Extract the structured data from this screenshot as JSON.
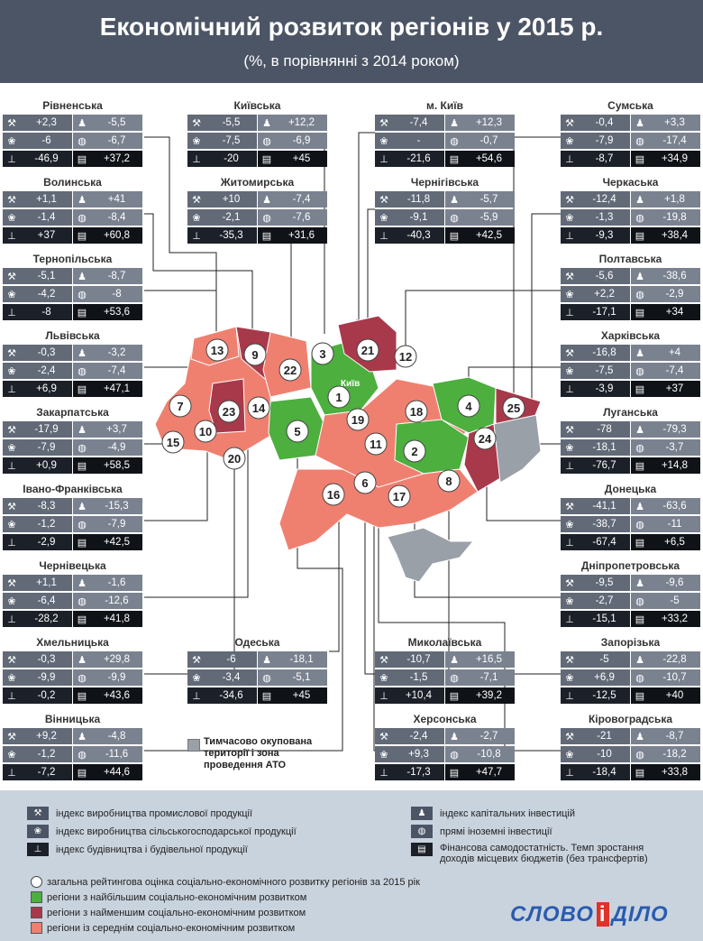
{
  "title": "Економічний розвиток регіонів  у 2015 р.",
  "subtitle": "(%, в порівнянні з 2014 роком)",
  "colors": {
    "header": "#4c5565",
    "best": "#4caf3e",
    "worst": "#a8394a",
    "average": "#ef8070",
    "occupied": "#9aa0a8"
  },
  "icons": {
    "industry": "wrench-icon",
    "agriculture": "wheat-icon",
    "construction": "crane-icon",
    "investment": "people-icon",
    "fdi": "globe-icon",
    "budget": "money-icon"
  },
  "capital_label": "Київ",
  "occupied_label": [
    "Тимчасово окупована",
    "території і зона",
    "проведення АТО"
  ],
  "regions": [
    {
      "id": "rivne",
      "name": "Рівненська",
      "v": [
        "+2,3",
        "-5,5",
        "-6",
        "-6,7",
        "-46,9",
        "+37,2"
      ]
    },
    {
      "id": "kyiv-obl",
      "name": "Київська",
      "v": [
        "-5,5",
        "+12,2",
        "-7,5",
        "-6,9",
        "-20",
        "+45"
      ]
    },
    {
      "id": "kyiv-city",
      "name": "м. Київ",
      "v": [
        "-7,4",
        "+12,3",
        "-",
        "-0,7",
        "-21,6",
        "+54,6"
      ]
    },
    {
      "id": "sumy",
      "name": "Сумська",
      "v": [
        "-0,4",
        "+3,3",
        "-7,9",
        "-17,4",
        "-8,7",
        "+34,9"
      ]
    },
    {
      "id": "volyn",
      "name": "Волинська",
      "v": [
        "+1,1",
        "+41",
        "-1,4",
        "-8,4",
        "+37",
        "+60,8"
      ]
    },
    {
      "id": "zhytomyr",
      "name": "Житомирська",
      "v": [
        "+10",
        "-7,4",
        "-2,1",
        "-7,6",
        "-35,3",
        "+31,6"
      ]
    },
    {
      "id": "chernihiv",
      "name": "Чернігівська",
      "v": [
        "-11,8",
        "-5,7",
        "-9,1",
        "-5,9",
        "-40,3",
        "+42,5"
      ]
    },
    {
      "id": "cherkasy",
      "name": "Черкаська",
      "v": [
        "-12,4",
        "+1,8",
        "-1,3",
        "-19,8",
        "-9,3",
        "+38,4"
      ]
    },
    {
      "id": "ternopil",
      "name": "Тернопільська",
      "v": [
        "-5,1",
        "-8,7",
        "-4,2",
        "-8",
        "-8",
        "+53,6"
      ]
    },
    {
      "id": "poltava",
      "name": "Полтавська",
      "v": [
        "-5,6",
        "-38,6",
        "+2,2",
        "-2,9",
        "-17,1",
        "+34"
      ]
    },
    {
      "id": "lviv",
      "name": "Львівська",
      "v": [
        "-0,3",
        "-3,2",
        "-2,4",
        "-7,4",
        "+6,9",
        "+47,1"
      ]
    },
    {
      "id": "kharkiv",
      "name": "Харківська",
      "v": [
        "-16,8",
        "+4",
        "-7,5",
        "-7,4",
        "-3,9",
        "+37"
      ]
    },
    {
      "id": "zakarpattia",
      "name": "Закарпатська",
      "v": [
        "-17,9",
        "+3,7",
        "-7,9",
        "-4,9",
        "+0,9",
        "+58,5"
      ]
    },
    {
      "id": "luhansk",
      "name": "Луганська",
      "v": [
        "-78",
        "-79,3",
        "-18,1",
        "-3,7",
        "-76,7",
        "+14,8"
      ]
    },
    {
      "id": "ivano-frankivsk",
      "name": "Івано-Франківська",
      "v": [
        "-8,3",
        "-15,3",
        "-1,2",
        "-7,9",
        "-2,9",
        "+42,5"
      ]
    },
    {
      "id": "donetsk",
      "name": "Донецька",
      "v": [
        "-41,1",
        "-63,6",
        "-38,7",
        "-11",
        "-67,4",
        "+6,5"
      ]
    },
    {
      "id": "chernivtsi",
      "name": "Чернівецька",
      "v": [
        "+1,1",
        "-1,6",
        "-6,4",
        "-12,6",
        "-28,2",
        "+41,8"
      ]
    },
    {
      "id": "dnipro",
      "name": "Дніпропетровська",
      "v": [
        "-9,5",
        "-9,6",
        "-2,7",
        "-5",
        "-15,1",
        "+33,2"
      ]
    },
    {
      "id": "khmelnytskyi",
      "name": "Хмельницька",
      "v": [
        "-0,3",
        "+29,8",
        "-9,9",
        "-9,9",
        "-0,2",
        "+43,6"
      ]
    },
    {
      "id": "odesa",
      "name": "Одеська",
      "v": [
        "-6",
        "-18,1",
        "-3,4",
        "-5,1",
        "-34,6",
        "+45"
      ]
    },
    {
      "id": "mykolaiv",
      "name": "Миколаївська",
      "v": [
        "-10,7",
        "+16,5",
        "-1,5",
        "-7,1",
        "+10,4",
        "+39,2"
      ]
    },
    {
      "id": "zaporizhzhia",
      "name": "Запорізька",
      "v": [
        "-5",
        "-22,8",
        "+6,9",
        "-10,7",
        "-12,5",
        "+40"
      ]
    },
    {
      "id": "vinnytsia",
      "name": "Вінницька",
      "v": [
        "+9,2",
        "-4,8",
        "-1,2",
        "-11,6",
        "-7,2",
        "+44,6"
      ]
    },
    {
      "id": "kherson",
      "name": "Херсонська",
      "v": [
        "-2,4",
        "-2,7",
        "+9,3",
        "-10,8",
        "-17,3",
        "+47,7"
      ]
    },
    {
      "id": "kirovohrad",
      "name": "Кіровоградська",
      "v": [
        "-21",
        "-8,7",
        "-10",
        "-18,2",
        "-18,4",
        "+33,8"
      ]
    }
  ],
  "ranks": [
    {
      "id": "kyiv-obl",
      "rank": "1",
      "category": "best"
    },
    {
      "id": "dnipro",
      "rank": "2",
      "category": "best"
    },
    {
      "id": "kyiv-city",
      "rank": "3",
      "category": "average"
    },
    {
      "id": "kharkiv",
      "rank": "4",
      "category": "best"
    },
    {
      "id": "vinnytsia",
      "rank": "5",
      "category": "best"
    },
    {
      "id": "mykolaiv",
      "rank": "6",
      "category": "average"
    },
    {
      "id": "zakarpattia",
      "rank": "7",
      "category": "average"
    },
    {
      "id": "zaporizhzhia",
      "rank": "8",
      "category": "average"
    },
    {
      "id": "zhytomyr",
      "rank": "9",
      "category": "average"
    },
    {
      "id": "lviv",
      "rank": "10",
      "category": "average"
    },
    {
      "id": "kirovohrad",
      "rank": "11",
      "category": "average"
    },
    {
      "id": "poltava",
      "rank": "12",
      "category": "average"
    },
    {
      "id": "volyn",
      "rank": "13",
      "category": "average"
    },
    {
      "id": "khmelnytskyi",
      "rank": "14",
      "category": "average"
    },
    {
      "id": "chernivtsi",
      "rank": "15",
      "category": "average"
    },
    {
      "id": "odesa",
      "rank": "16",
      "category": "average"
    },
    {
      "id": "kherson",
      "rank": "17",
      "category": "average"
    },
    {
      "id": "cherkasy",
      "rank": "18",
      "category": "average"
    },
    {
      "id": "vinnytsia-19",
      "rank": "19",
      "category": "average"
    },
    {
      "id": "ivano-frankivsk",
      "rank": "20",
      "category": "average"
    },
    {
      "id": "chernihiv",
      "rank": "21",
      "category": "worst"
    },
    {
      "id": "rivne",
      "rank": "22",
      "category": "worst"
    },
    {
      "id": "ternopil",
      "rank": "23",
      "category": "worst"
    },
    {
      "id": "donetsk",
      "rank": "24",
      "category": "worst"
    },
    {
      "id": "sumy",
      "rank": "25",
      "category": "worst"
    }
  ],
  "legend": {
    "industry": "індекс виробництва промислової продукції",
    "agriculture": "індекс виробництва сільськогосподарської продукції",
    "construction": "індекс будівництва і будівельної продукції",
    "investment": "індекс капітальних інвестицій",
    "fdi": "прямі іноземні інвестиції",
    "budget_1": "Фінансова самодостатність. Темп зростання",
    "budget_2": "доходів місцевих бюджетів (без трансфертів)",
    "rating": "загальна рейтингова оцінка соціально-економічного розвитку регіонів за 2015 рік",
    "best": "регіони з найбільшим соціально-економічним розвитком",
    "worst": "регіони з найменшим соціально-економічним розвитком",
    "average": "регіони із середнім соціально-економічним розвитком"
  },
  "logo": {
    "part1": "СЛОВО",
    "part2": "і",
    "part3": "ДІЛО"
  }
}
